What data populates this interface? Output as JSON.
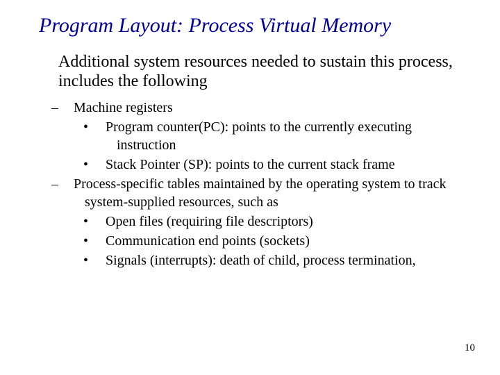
{
  "title_color": "#000099",
  "title": "Program Layout: Process Virtual Memory",
  "intro": "Additional system resources needed to sustain this process, includes the following",
  "items": [
    {
      "level": 1,
      "text": "Machine registers"
    },
    {
      "level": 2,
      "text": "Program counter(PC): points to the currently executing instruction"
    },
    {
      "level": 2,
      "text": "Stack Pointer (SP): points to the current stack frame"
    },
    {
      "level": 1,
      "text": "Process-specific tables maintained by the operating system to track system-supplied resources, such as"
    },
    {
      "level": 2,
      "text": "Open files (requiring file descriptors)"
    },
    {
      "level": 2,
      "text": "Communication end points (sockets)"
    },
    {
      "level": 2,
      "text": "Signals (interrupts): death of child, process termination,"
    }
  ],
  "page_number": "10"
}
